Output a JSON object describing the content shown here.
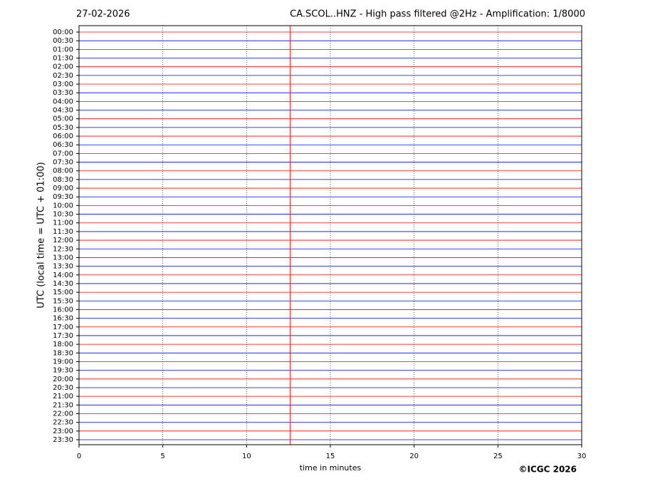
{
  "chart_data": {
    "type": "helicorder",
    "date": "27-02-2026",
    "title": "CA.SCOL..HNZ - High pass filtered @2Hz - Amplification: 1/8000",
    "ylabel": "UTC (local time = UTC + 01:00)",
    "xlabel": "time in minutes",
    "credit": "©ICGC 2026",
    "categories": [
      "00:00",
      "00:30",
      "01:00",
      "01:30",
      "02:00",
      "02:30",
      "03:00",
      "03:30",
      "04:00",
      "04:30",
      "05:00",
      "05:30",
      "06:00",
      "06:30",
      "07:00",
      "07:30",
      "08:00",
      "08:30",
      "09:00",
      "09:30",
      "10:00",
      "10:30",
      "11:00",
      "11:30",
      "12:00",
      "12:30",
      "13:00",
      "13:30",
      "14:00",
      "14:30",
      "15:00",
      "15:30",
      "16:00",
      "16:30",
      "17:00",
      "17:30",
      "18:00",
      "18:30",
      "19:00",
      "19:30",
      "20:00",
      "20:30",
      "21:00",
      "21:30",
      "22:00",
      "22:30",
      "23:00",
      "23:30"
    ],
    "trace_colors": [
      "#ff0000",
      "#0000ff"
    ],
    "xlim": [
      0,
      30
    ],
    "xticks": [
      0,
      5,
      10,
      15,
      20,
      25,
      30
    ],
    "grid": true,
    "event_x": 12.6
  }
}
